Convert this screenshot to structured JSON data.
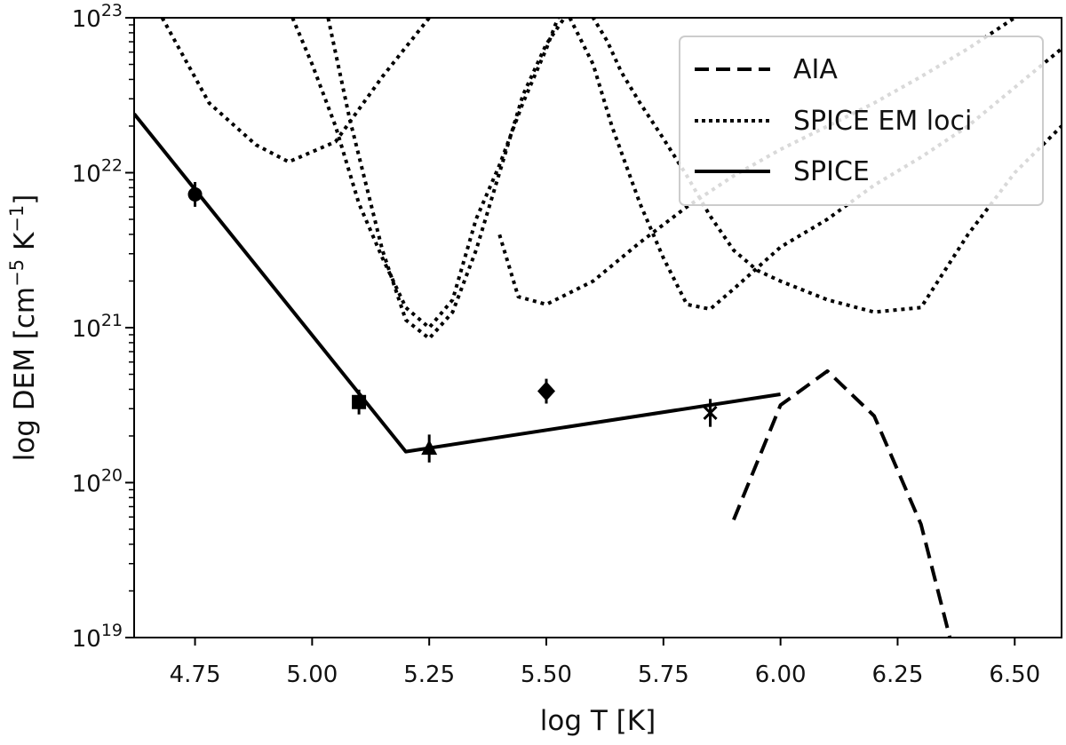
{
  "chart_data": {
    "type": "line",
    "title": "",
    "xlabel": "log T [K]",
    "ylabel": "log DEM [cm",
    "ylabel_exp1": "−5",
    "ylabel_unit": " K",
    "ylabel_exp2": "−1",
    "ylabel_close": "]",
    "xlim": [
      4.62,
      6.6
    ],
    "ylim_log10": [
      19,
      23
    ],
    "y_scale": "log",
    "x_ticks": [
      4.75,
      5.0,
      5.25,
      5.5,
      5.75,
      6.0,
      6.25,
      6.5
    ],
    "x_tick_labels": [
      "4.75",
      "5.00",
      "5.25",
      "5.50",
      "5.75",
      "6.00",
      "6.25",
      "6.50"
    ],
    "y_ticks_log10": [
      19,
      20,
      21,
      22,
      23
    ],
    "y_tick_base": "10",
    "y_tick_exponents": [
      "19",
      "20",
      "21",
      "22",
      "23"
    ],
    "legend": {
      "position": "top-right",
      "entries": [
        {
          "label": "AIA",
          "style": "dashed"
        },
        {
          "label": "SPICE EM loci",
          "style": "dotted"
        },
        {
          "label": "SPICE",
          "style": "solid"
        }
      ]
    },
    "series": [
      {
        "name": "AIA",
        "style": "dashed",
        "x": [
          5.9,
          6.0,
          6.1,
          6.2,
          6.3,
          6.37
        ],
        "log10_y": [
          19.76,
          20.5,
          20.72,
          20.43,
          19.73,
          18.9
        ]
      },
      {
        "name": "SPICE",
        "style": "solid",
        "x": [
          4.62,
          5.2,
          6.0
        ],
        "log10_y": [
          22.38,
          20.2,
          20.57
        ]
      }
    ],
    "em_loci": [
      {
        "x": [
          4.68,
          4.78,
          4.88,
          4.95,
          5.05,
          5.15,
          5.25,
          5.35,
          5.45,
          5.55,
          5.61
        ],
        "log10_y": [
          23.0,
          22.45,
          22.18,
          22.07,
          22.2,
          22.62,
          23.0,
          23.6,
          24.2,
          24.8,
          25.2
        ]
      },
      {
        "x": [
          4.82,
          4.93,
          5.0,
          5.05,
          5.1,
          5.15,
          5.2,
          5.25,
          5.3,
          5.35,
          5.4,
          5.45,
          5.5,
          5.55,
          5.6,
          5.65
        ],
        "log10_y": [
          24.0,
          23.2,
          22.7,
          22.3,
          21.8,
          21.45,
          21.13,
          21.0,
          21.18,
          21.7,
          22.05,
          22.45,
          22.8,
          23.2,
          23.6,
          23.9
        ]
      },
      {
        "x": [
          5.02,
          5.08,
          5.15,
          5.2,
          5.25,
          5.3,
          5.35,
          5.4,
          5.42,
          5.45,
          5.5,
          5.55,
          5.6,
          5.62
        ],
        "log10_y": [
          23.2,
          22.35,
          21.5,
          21.05,
          20.93,
          21.1,
          21.5,
          22.0,
          22.2,
          22.5,
          22.83,
          23.05,
          23.3,
          23.4
        ],
        "extra_x": [
          5.4,
          5.44,
          5.5,
          5.6,
          5.7,
          5.8,
          5.9,
          6.0,
          6.1,
          6.2,
          6.3,
          6.4,
          6.5,
          6.6
        ],
        "extra_log10_y": [
          21.6,
          21.2,
          21.15,
          21.3,
          21.55,
          21.78,
          21.98,
          22.15,
          22.3,
          22.45,
          22.62,
          22.8,
          23.0,
          23.2
        ]
      },
      {
        "x": [
          5.55,
          5.6,
          5.64,
          5.7,
          5.75,
          5.8,
          5.85,
          5.9,
          6.0,
          6.1,
          6.2,
          6.3,
          6.4,
          6.5,
          6.6
        ],
        "log10_y": [
          23.0,
          22.7,
          22.3,
          21.8,
          21.45,
          21.15,
          21.12,
          21.25,
          21.52,
          21.7,
          21.92,
          22.1,
          22.3,
          22.55,
          22.8
        ]
      },
      {
        "x": [
          5.55,
          5.58,
          5.6,
          5.63,
          5.66,
          5.7,
          5.75,
          5.8,
          5.85,
          5.9,
          5.95,
          6.0,
          6.1,
          6.2,
          6.3,
          6.4,
          6.5,
          6.6
        ],
        "log10_y": [
          23.5,
          23.2,
          23.0,
          22.85,
          22.65,
          22.45,
          22.22,
          21.98,
          21.72,
          21.5,
          21.37,
          21.3,
          21.18,
          21.1,
          21.13,
          21.6,
          22.0,
          22.3
        ]
      }
    ],
    "points": [
      {
        "marker": "circle",
        "x": 4.75,
        "log10_y": 21.86,
        "err": 0.08
      },
      {
        "marker": "square",
        "x": 5.1,
        "log10_y": 20.52,
        "err": 0.08
      },
      {
        "marker": "triangle",
        "x": 5.25,
        "log10_y": 20.22,
        "err": 0.09
      },
      {
        "marker": "diamond",
        "x": 5.5,
        "log10_y": 20.59,
        "err": 0.08
      },
      {
        "marker": "x",
        "x": 5.85,
        "log10_y": 20.45,
        "err": 0.09
      }
    ]
  }
}
